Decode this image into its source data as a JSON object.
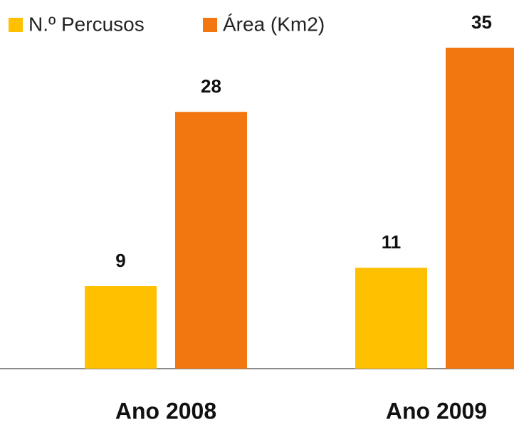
{
  "chart_data": {
    "type": "bar",
    "categories": [
      "Ano 2008",
      "Ano 2009"
    ],
    "series": [
      {
        "name": "N.º Percusos",
        "color": "#FFC000",
        "values": [
          9,
          11
        ]
      },
      {
        "name": "Área (Km2)",
        "color": "#F27711",
        "values": [
          28,
          35
        ]
      }
    ]
  }
}
